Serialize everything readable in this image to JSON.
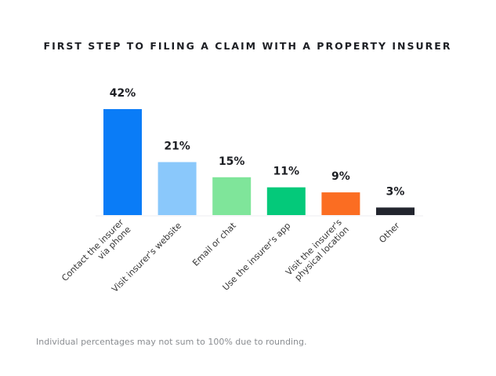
{
  "chart_data": {
    "type": "bar",
    "title": "FIRST STEP TO FILING A CLAIM WITH A PROPERTY INSURER",
    "categories": [
      [
        "Contact the insurer",
        "via phone"
      ],
      [
        "Visit insurer's website"
      ],
      [
        "Email or chat"
      ],
      [
        "Use the insurer's app"
      ],
      [
        "Visit the insurer's",
        "physical location"
      ],
      [
        "Other"
      ]
    ],
    "values": [
      42,
      21,
      15,
      11,
      9,
      3
    ],
    "value_labels": [
      "42%",
      "21%",
      "15%",
      "11%",
      "9%",
      "3%"
    ],
    "colors": [
      "#0a7cf7",
      "#8ac8fb",
      "#7fe59a",
      "#04c97a",
      "#fb6d22",
      "#22252e"
    ],
    "xlabel": "",
    "ylabel": "",
    "ylim": [
      0,
      45
    ],
    "grid": false,
    "legend": "none",
    "footnote": "Individual percentages may not sum to 100% due to rounding."
  }
}
